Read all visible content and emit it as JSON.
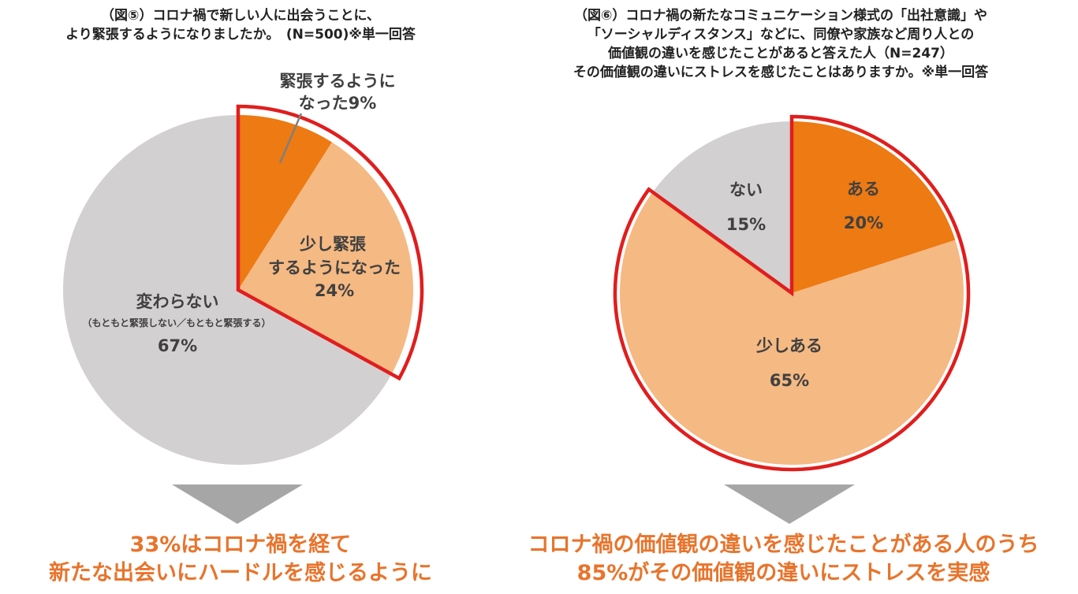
{
  "chart_data": [
    {
      "type": "pie",
      "title_lines": [
        "（図⑤）コロナ禍で新しい人に出会うことに、",
        "より緊張するようになりましたか。　(N=500)※単一回答"
      ],
      "slices": [
        {
          "label_lines": [
            "緊張するように",
            "なった9%"
          ],
          "value": 9,
          "color": "#ed7a12"
        },
        {
          "label_lines": [
            "少し緊張",
            "するようになった",
            "24%"
          ],
          "value": 24,
          "color": "#f5b983"
        },
        {
          "label_lines": [
            "変わらない",
            "（もともと緊張しない／もともと緊張する）",
            "67%"
          ],
          "value": 67,
          "color": "#d3d0d1"
        }
      ],
      "highlight_color": "#e01e1e",
      "highlighted_total": "33%"
    },
    {
      "type": "pie",
      "title_lines": [
        "（図⑥）コロナ禍の新たなコミュニケーション様式の「出社意識」や",
        "「ソーシャルディスタンス」などに、同僚や家族など周り人との",
        "価値観の違いを感じたことがあると答えた人（N=247）",
        "その価値観の違いにストレスを感じたことはありますか。※単一回答"
      ],
      "slices": [
        {
          "label_lines": [
            "ある",
            "20%"
          ],
          "value": 20,
          "color": "#ed7a12"
        },
        {
          "label_lines": [
            "少しある",
            "65%"
          ],
          "value": 65,
          "color": "#f5b983"
        },
        {
          "label_lines": [
            "ない",
            "15%"
          ],
          "value": 15,
          "color": "#d3d0d1"
        }
      ],
      "highlight_color": "#e01e1e",
      "highlighted_total": "85%"
    }
  ],
  "conclusions": [
    [
      "33%はコロナ禍を経て",
      "新たな出会いにハードルを感じるように"
    ],
    [
      "コロナ禍の価値観の違いを感じたことがある人のうち",
      "85%がその価値観の違いにストレスを実感"
    ]
  ],
  "arrow_color": "#a6a6a6"
}
